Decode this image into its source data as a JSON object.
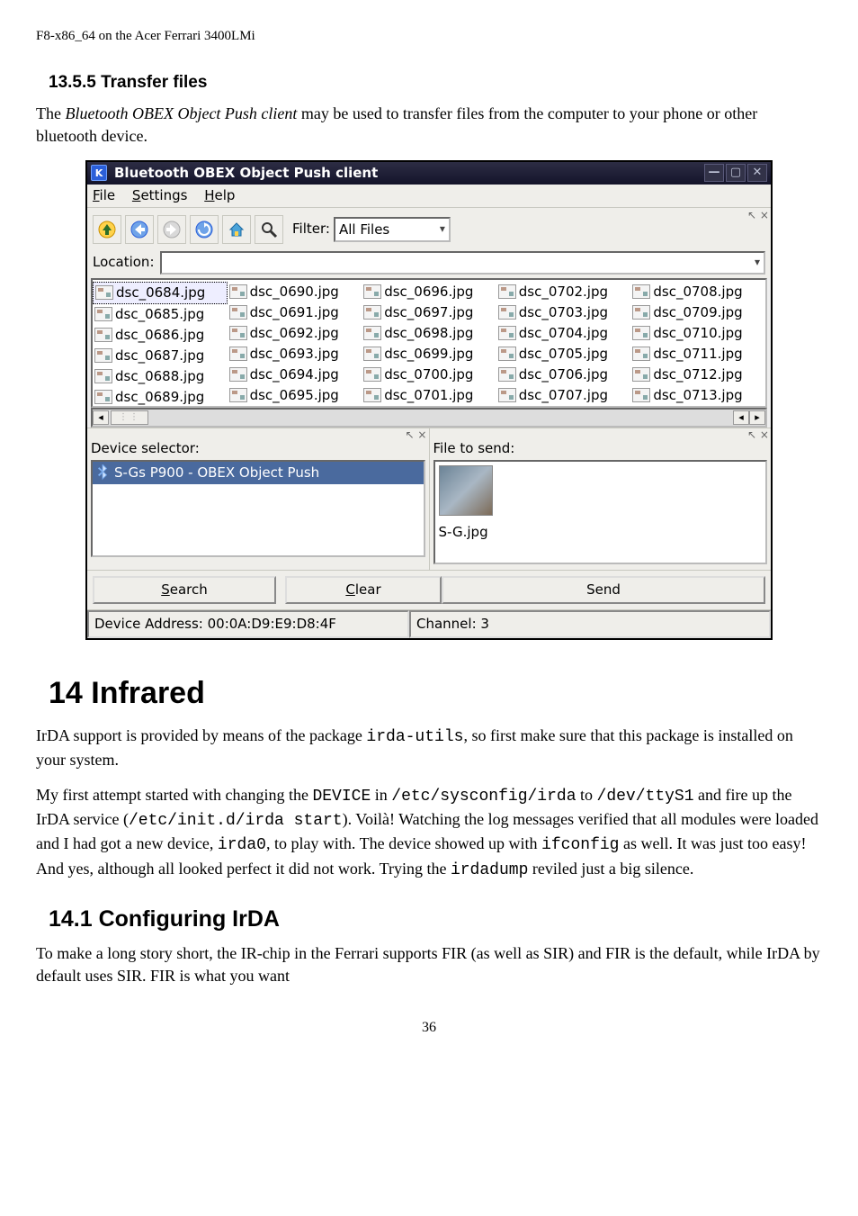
{
  "page_header": "F8-x86_64 on the Acer Ferrari 3400LMi",
  "section_1355": "13.5.5 Transfer files",
  "para_1355": "The <em>Bluetooth OBEX Object Push client</em> may be used to transfer files from the computer to your phone or other bluetooth device.",
  "window": {
    "title": "Bluetooth OBEX Object Push client",
    "menus": {
      "file": "File",
      "settings": "Settings",
      "help": "Help"
    },
    "filter_label": "Filter:",
    "filter_value": "All Files",
    "location_label": "Location:",
    "file_cols": [
      [
        "dsc_0684.jpg",
        "dsc_0685.jpg",
        "dsc_0686.jpg",
        "dsc_0687.jpg",
        "dsc_0688.jpg",
        "dsc_0689.jpg"
      ],
      [
        "dsc_0690.jpg",
        "dsc_0691.jpg",
        "dsc_0692.jpg",
        "dsc_0693.jpg",
        "dsc_0694.jpg",
        "dsc_0695.jpg"
      ],
      [
        "dsc_0696.jpg",
        "dsc_0697.jpg",
        "dsc_0698.jpg",
        "dsc_0699.jpg",
        "dsc_0700.jpg",
        "dsc_0701.jpg"
      ],
      [
        "dsc_0702.jpg",
        "dsc_0703.jpg",
        "dsc_0704.jpg",
        "dsc_0705.jpg",
        "dsc_0706.jpg",
        "dsc_0707.jpg"
      ],
      [
        "dsc_0708.jpg",
        "dsc_0709.jpg",
        "dsc_0710.jpg",
        "dsc_0711.jpg",
        "dsc_0712.jpg",
        "dsc_0713.jpg"
      ]
    ],
    "selected_file_index": 0,
    "device_selector_label": "Device selector:",
    "device_item": "S-Gs P900 - OBEX Object Push",
    "file_to_send_label": "File to send:",
    "preview_filename": "S-G.jpg",
    "buttons": {
      "search": "Search",
      "clear": "Clear",
      "send": "Send"
    },
    "status_address": "Device Address: 00:0A:D9:E9:D8:4F",
    "status_channel": "Channel: 3"
  },
  "section_14": "14 Infrared",
  "para_14_1": "IrDA support is provided by means of the package <code>irda-utils</code>, so first make sure that this package is installed on your system.",
  "para_14_2": "My first attempt started with changing the <code>DEVICE</code> in <code>/etc/sysconfig/irda</code> to <code>/dev/ttyS1</code> and fire up the IrDA service (<code>/etc/init.d/irda start</code>). Voilà! Watching the log messages verified that all modules were loaded and I had got a new device, <code>irda0</code>, to play with. The device showed up with <code>ifconfig</code> as well. It was just too easy! And yes, although all looked perfect it did not work. Trying the <code>irdadump</code> reviled just a big silence.",
  "section_141": "14.1 Configuring IrDA",
  "para_141": "To make a long story short, the IR-chip in the Ferrari supports FIR (as well as SIR) and FIR is the default, while IrDA by default uses SIR. FIR is what you want",
  "page_number": "36"
}
